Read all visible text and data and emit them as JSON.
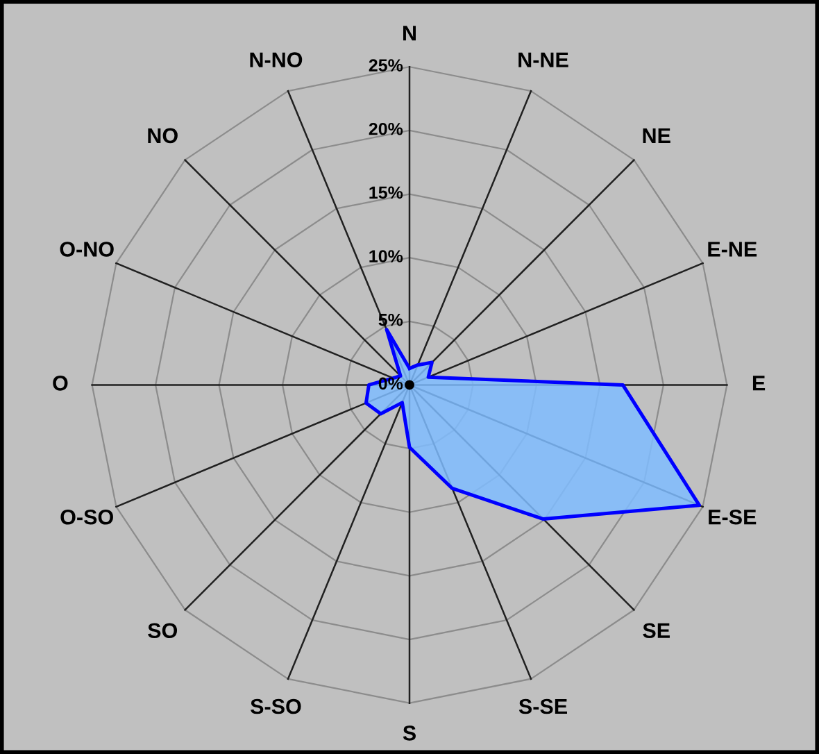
{
  "chart_data": {
    "type": "radar",
    "categories": [
      "N",
      "N-NE",
      "NE",
      "E-NE",
      "E",
      "E-SE",
      "SE",
      "S-SE",
      "S",
      "S-SO",
      "SO",
      "O-SO",
      "O",
      "O-NO",
      "NO",
      "N-NO"
    ],
    "series": [
      {
        "color": "#0000ff",
        "values": [
          1.3,
          1.7,
          2.5,
          1.6,
          16.8,
          24.7,
          14.9,
          8.8,
          4.9,
          1.5,
          3.2,
          3.7,
          3.2,
          1.4,
          1.0,
          4.7
        ]
      }
    ],
    "ylim": [
      0,
      25
    ],
    "yticks": [
      {
        "value": 0,
        "label": "0%"
      },
      {
        "value": 5,
        "label": "5%"
      },
      {
        "value": 10,
        "label": "10%"
      },
      {
        "value": 15,
        "label": "15%"
      },
      {
        "value": 20,
        "label": "20%"
      },
      {
        "value": 25,
        "label": "25%"
      }
    ],
    "grid": true
  }
}
